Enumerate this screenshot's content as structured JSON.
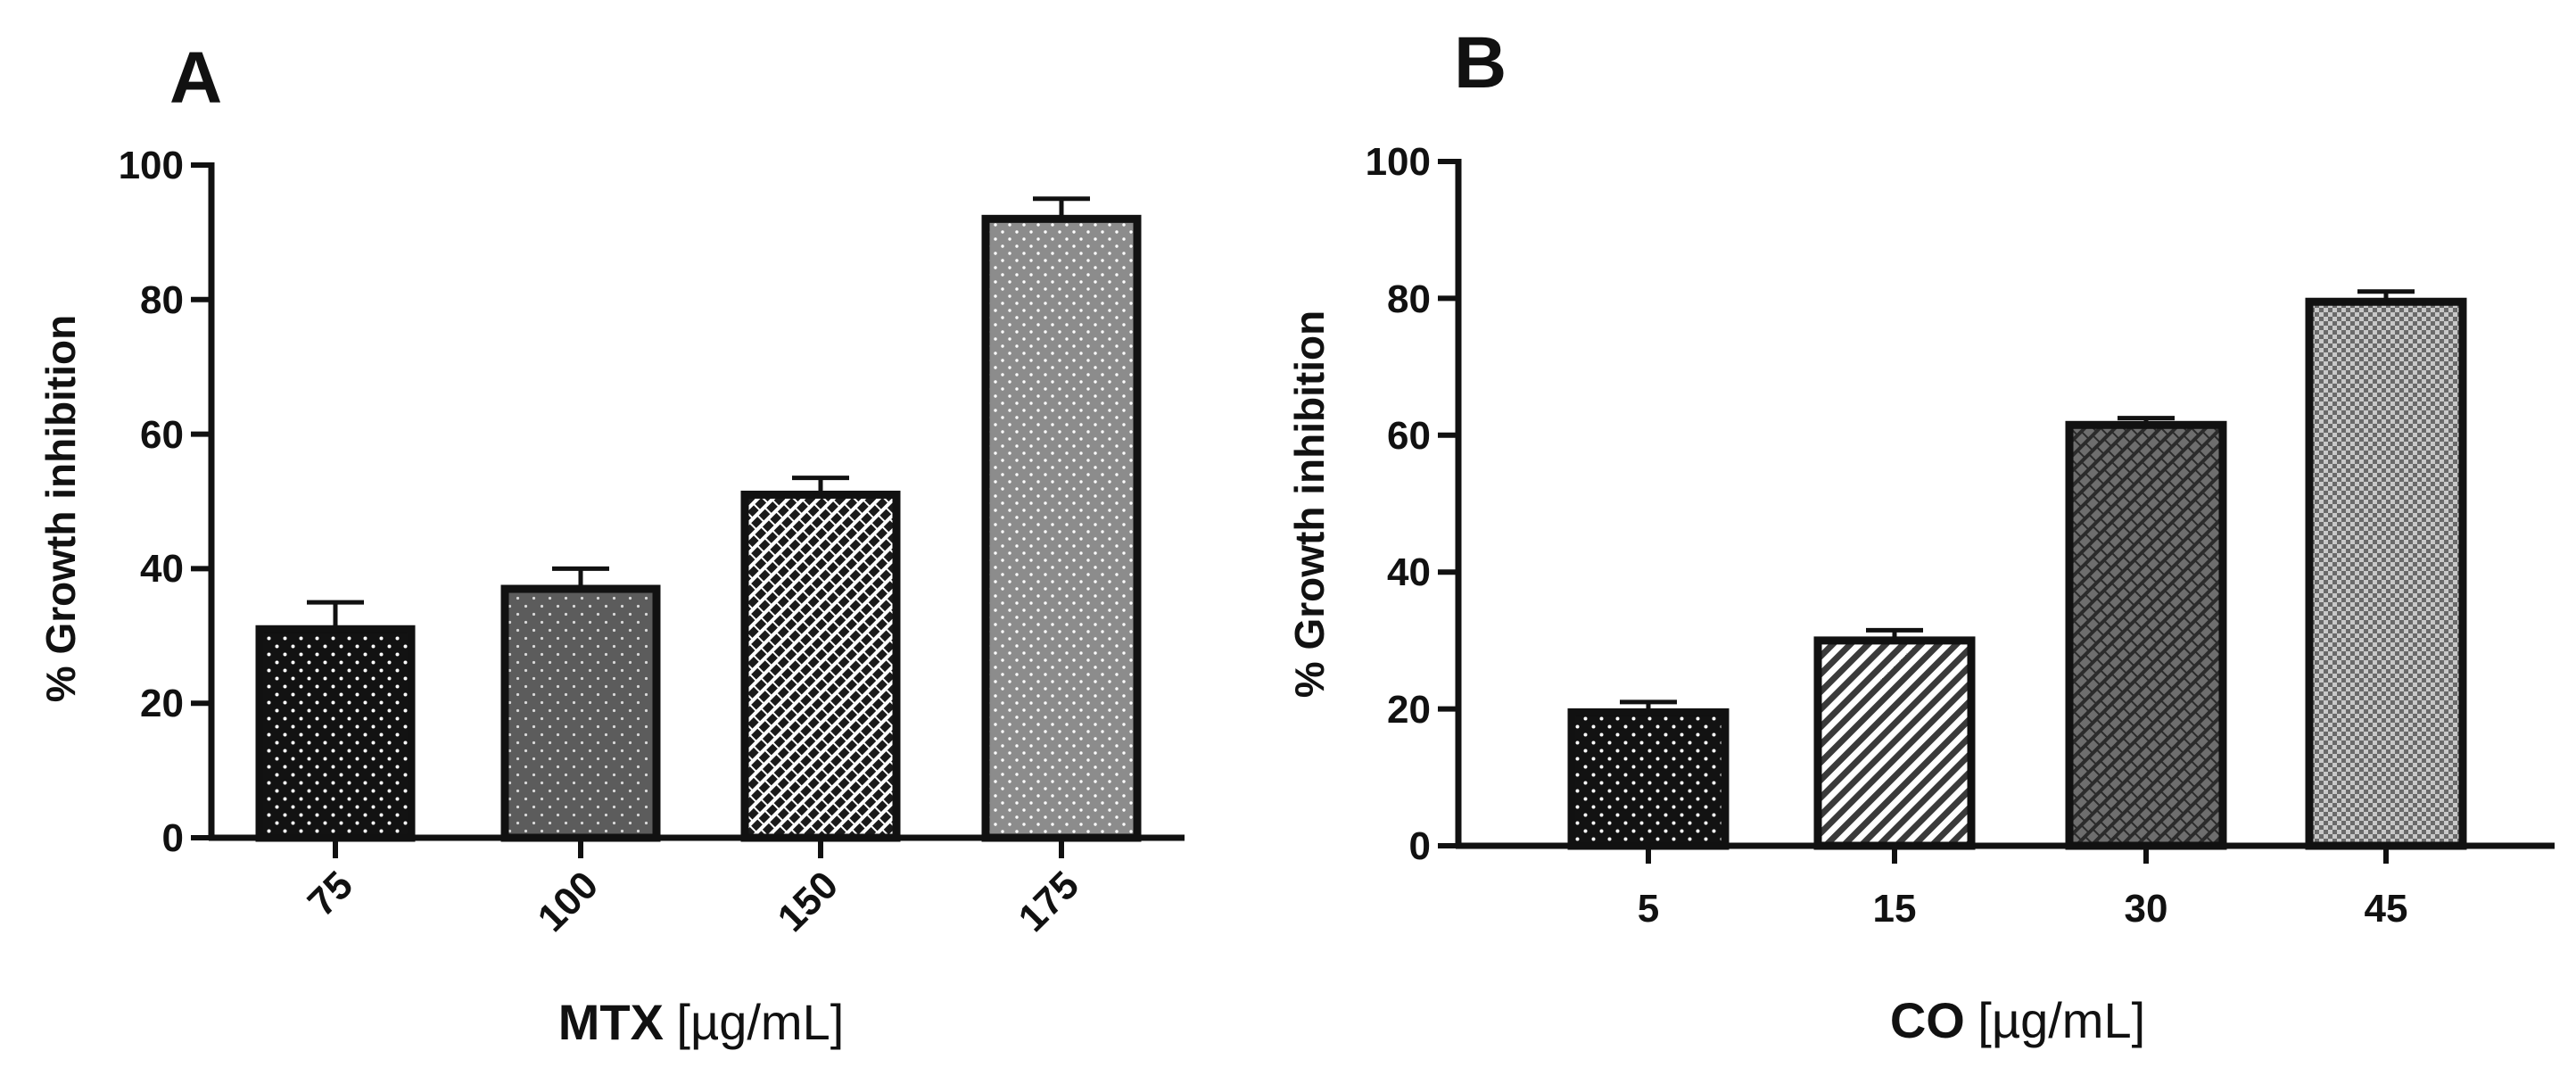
{
  "chart_data": [
    {
      "type": "bar",
      "panel": "A",
      "categories": [
        "75",
        "100",
        "150",
        "175"
      ],
      "values": [
        31,
        37,
        51,
        92
      ],
      "errors": [
        4,
        3,
        2.5,
        3
      ],
      "xlabel_main": "MTX",
      "xlabel_unit": "[µg/mL]",
      "ylabel": "% Growth inhibition",
      "ylim": [
        0,
        100
      ],
      "yticks": [
        "0",
        "20",
        "40",
        "60",
        "80",
        "100"
      ],
      "grid": false,
      "x_tick_labels_rotated": true,
      "bar_fills": [
        "dots-dark",
        "dots-gray",
        "bricks-light",
        "dots-gray-light"
      ]
    },
    {
      "type": "bar",
      "panel": "B",
      "categories": [
        "5",
        "15",
        "30",
        "45"
      ],
      "values": [
        19.5,
        30,
        61.5,
        79.5
      ],
      "errors": [
        1.5,
        1.5,
        1,
        1.5
      ],
      "xlabel_main": "CO",
      "xlabel_unit": "[µg/mL]",
      "ylabel": "% Growth inhibition",
      "ylim": [
        0,
        100
      ],
      "yticks": [
        "0",
        "20",
        "40",
        "60",
        "80",
        "100"
      ],
      "grid": false,
      "x_tick_labels_rotated": false,
      "bar_fills": [
        "dots-dark",
        "diagonal-stripes",
        "bricks-dark",
        "checker-gray"
      ]
    }
  ],
  "colors": {
    "axis": "#111111",
    "background": "#ffffff"
  }
}
